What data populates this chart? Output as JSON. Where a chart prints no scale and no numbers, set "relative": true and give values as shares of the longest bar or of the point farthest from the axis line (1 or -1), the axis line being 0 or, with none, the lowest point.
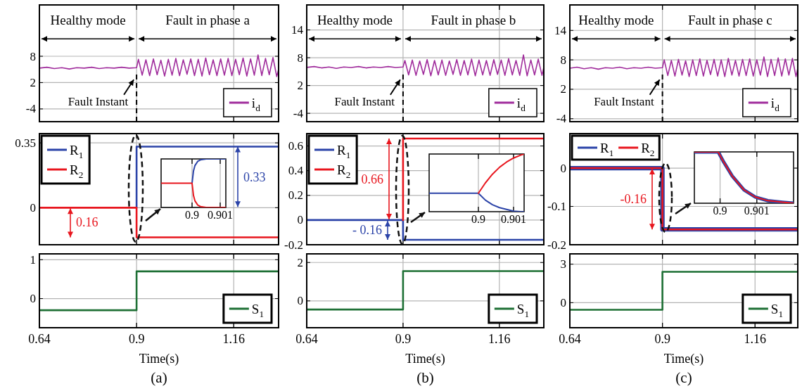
{
  "chart_data": [
    {
      "type": "line",
      "xlim": [
        0.64,
        1.28
      ],
      "xticks": [
        0.64,
        0.9,
        1.16
      ],
      "ylim": [
        -6.9,
        19.7
      ],
      "yticks": [
        -4,
        2,
        8
      ],
      "tick_labels": "y",
      "grid": true,
      "legend": "bottom right",
      "series": [
        {
          "name": "i$_{d}$",
          "color": "#a02c9c",
          "x": [
            0.64,
            0.66,
            0.68,
            0.7,
            0.72,
            0.74,
            0.76,
            0.78,
            0.8,
            0.82,
            0.84,
            0.86,
            0.88,
            0.9,
            0.905,
            0.915,
            0.925,
            0.935,
            0.945,
            0.955,
            0.965,
            0.975,
            0.985,
            0.995,
            1.005,
            1.015,
            1.025,
            1.035,
            1.045,
            1.055,
            1.065,
            1.075,
            1.085,
            1.095,
            1.105,
            1.115,
            1.125,
            1.135,
            1.145,
            1.155,
            1.165,
            1.175,
            1.185,
            1.195,
            1.205,
            1.215,
            1.225,
            1.235,
            1.245,
            1.255,
            1.265,
            1.275,
            1.28
          ],
          "values": [
            5.3,
            5.5,
            5.2,
            5.4,
            5.1,
            5.4,
            5.3,
            5.5,
            5.2,
            5.4,
            5.3,
            5.5,
            5.3,
            5.4,
            7.3,
            3.7,
            7.2,
            3.6,
            7.4,
            3.8,
            7.1,
            3.5,
            7.3,
            3.7,
            7.5,
            3.6,
            7.2,
            3.9,
            7.4,
            3.6,
            7.3,
            3.5,
            7.6,
            3.8,
            7.2,
            3.6,
            7.4,
            3.7,
            7.5,
            3.6,
            7.3,
            3.8,
            7.6,
            3.5,
            7.4,
            3.7,
            8.3,
            3.6,
            7.5,
            3.8,
            7.7,
            3.4,
            5.0
          ]
        }
      ],
      "annotations": [
        "Healthy mode",
        "Fault in phase a"
      ],
      "ref_lines": [
        {
          "axis": "x",
          "value": 0.9,
          "label": "Fault Instant",
          "line_style": "dashed"
        }
      ]
    },
    {
      "type": "line",
      "xlim": [
        0.64,
        1.28
      ],
      "xticks": [
        0.64,
        0.9,
        1.16
      ],
      "ylim": [
        -0.2,
        0.4
      ],
      "yticks": [
        0,
        0.35
      ],
      "tick_labels": "y",
      "grid": true,
      "legend": "top left",
      "series": [
        {
          "name": "R$_{1}$",
          "color": "#2b43a8",
          "x": [
            0.9,
            0.9,
            1.28
          ],
          "values": [
            0,
            0.33,
            0.33
          ]
        },
        {
          "name": "R$_{2}$",
          "color": "#e8161e",
          "x": [
            0.64,
            0.9,
            0.9,
            1.28
          ],
          "values": [
            0,
            0,
            -0.16,
            -0.16
          ]
        }
      ],
      "annotations": [
        "0.16",
        "0.33"
      ]
    },
    {
      "type": "line",
      "relative": true,
      "xlim": [
        0.8989,
        0.9012
      ],
      "xticks": [
        0.9,
        0.901
      ],
      "tick_labels": "x",
      "grid": "x",
      "series": [
        {
          "color": "#2b43a8",
          "x": [
            0.9,
            0.90005,
            0.9001,
            0.9002,
            0.9003,
            0.9005,
            0.9012
          ],
          "values": [
            0.5,
            0.75,
            0.86,
            0.95,
            0.98,
            1,
            1
          ]
        },
        {
          "color": "#e8161e",
          "x": [
            0.8989,
            0.9,
            0.90005,
            0.9001,
            0.9002,
            0.9003,
            0.9005,
            0.9012
          ],
          "values": [
            0.5,
            0.5,
            0.25,
            0.14,
            0.05,
            0.02,
            0,
            0
          ]
        }
      ]
    },
    {
      "type": "step",
      "xlim": [
        0.64,
        1.28
      ],
      "xticks": [
        0.64,
        0.9,
        1.16
      ],
      "ylim": [
        -0.75,
        1.15
      ],
      "yticks": [
        0,
        1
      ],
      "grid": true,
      "legend": "bottom right",
      "xlabel": "Time(s)",
      "series": [
        {
          "name": "S$_{1}$",
          "color": "#1e7035",
          "x": [
            0.64,
            0.9,
            1.28
          ],
          "values": [
            -0.3,
            0.7,
            0.7
          ]
        }
      ],
      "annotations": [
        "(a)"
      ]
    },
    {
      "type": "line",
      "xlim": [
        0.64,
        1.28
      ],
      "xticks": [
        0.64,
        0.9,
        1.16
      ],
      "ylim": [
        -5.8,
        19.4
      ],
      "yticks": [
        -4,
        2,
        8,
        14
      ],
      "tick_labels": "y",
      "grid": true,
      "legend": "bottom right",
      "series": [
        {
          "name": "i$_{d}$",
          "color": "#a02c9c",
          "x": [
            0.64,
            0.66,
            0.68,
            0.7,
            0.72,
            0.74,
            0.76,
            0.78,
            0.8,
            0.82,
            0.84,
            0.86,
            0.88,
            0.9,
            0.905,
            0.915,
            0.925,
            0.935,
            0.945,
            0.955,
            0.965,
            0.975,
            0.985,
            0.995,
            1.005,
            1.015,
            1.025,
            1.035,
            1.045,
            1.055,
            1.065,
            1.075,
            1.085,
            1.095,
            1.105,
            1.115,
            1.125,
            1.135,
            1.145,
            1.155,
            1.165,
            1.175,
            1.185,
            1.195,
            1.205,
            1.215,
            1.225,
            1.235,
            1.245,
            1.255,
            1.265,
            1.275,
            1.28
          ],
          "values": [
            5.9,
            6.1,
            5.8,
            6.0,
            5.7,
            6.0,
            5.9,
            6.1,
            5.8,
            6.0,
            5.9,
            6.1,
            5.9,
            6.0,
            7.4,
            4.3,
            7.5,
            4.2,
            7.3,
            4.4,
            7.6,
            4.1,
            7.4,
            4.3,
            7.5,
            4.2,
            7.3,
            4.4,
            7.6,
            4.2,
            7.4,
            4.3,
            7.7,
            4.1,
            7.5,
            4.3,
            7.4,
            4.2,
            7.6,
            4.4,
            7.5,
            4.2,
            7.8,
            4.3,
            7.4,
            4.2,
            8.6,
            4.1,
            7.5,
            4.3,
            7.7,
            4.2,
            5.9
          ]
        }
      ],
      "annotations": [
        "Healthy mode",
        "Fault in phase b"
      ],
      "ref_lines": [
        {
          "axis": "x",
          "value": 0.9,
          "label": "Fault Instant",
          "line_style": "dashed"
        }
      ]
    },
    {
      "type": "line",
      "xlim": [
        0.64,
        1.28
      ],
      "xticks": [
        0.64,
        0.9,
        1.16
      ],
      "ylim": [
        -0.2,
        0.7
      ],
      "yticks": [
        -0.2,
        0,
        0.2,
        0.4,
        0.6
      ],
      "tick_labels": "y",
      "grid": true,
      "legend": "top left",
      "series": [
        {
          "name": "R$_{1}$",
          "color": "#2b43a8",
          "x": [
            0.64,
            0.9,
            0.9,
            1.28
          ],
          "values": [
            0,
            0,
            -0.16,
            -0.16
          ]
        },
        {
          "name": "R$_{2}$",
          "color": "#e8161e",
          "x": [
            0.9,
            0.9,
            1.28
          ],
          "values": [
            0,
            0.66,
            0.66
          ]
        }
      ],
      "annotations": [
        "0.66",
        "- 0.16"
      ]
    },
    {
      "type": "line",
      "relative": true,
      "xlim": [
        0.8986,
        0.9013
      ],
      "xticks": [
        0.9,
        0.901
      ],
      "tick_labels": "x",
      "grid": "x",
      "series": [
        {
          "color": "#2b43a8",
          "x": [
            0.8986,
            0.9,
            0.9002,
            0.9004,
            0.9006,
            0.9008,
            0.901,
            0.9012,
            0.9013
          ],
          "values": [
            0.32,
            0.32,
            0.2,
            0.12,
            0.07,
            0.04,
            0.01,
            0,
            0
          ]
        },
        {
          "color": "#e8161e",
          "x": [
            0.9,
            0.9002,
            0.9004,
            0.9006,
            0.9008,
            0.901,
            0.9012,
            0.9013
          ],
          "values": [
            0.32,
            0.5,
            0.65,
            0.77,
            0.86,
            0.93,
            0.98,
            1
          ]
        }
      ]
    },
    {
      "type": "step",
      "xlim": [
        0.64,
        1.28
      ],
      "xticks": [
        0.64,
        0.9,
        1.16
      ],
      "ylim": [
        -1.4,
        2.45
      ],
      "yticks": [
        0,
        2
      ],
      "grid": true,
      "legend": "bottom right",
      "xlabel": "Time(s)",
      "series": [
        {
          "name": "S$_{1}$",
          "color": "#1e7035",
          "x": [
            0.64,
            0.9,
            1.28
          ],
          "values": [
            -0.45,
            1.55,
            1.55
          ]
        }
      ],
      "annotations": [
        "(b)"
      ]
    },
    {
      "type": "line",
      "xlim": [
        0.64,
        1.28
      ],
      "xticks": [
        0.64,
        0.9,
        1.16
      ],
      "ylim": [
        -4.6,
        19.2
      ],
      "yticks": [
        -4,
        2,
        8,
        14
      ],
      "tick_labels": "y",
      "grid": true,
      "legend": "bottom right",
      "series": [
        {
          "name": "i$_{d}$",
          "color": "#a02c9c",
          "x": [
            0.64,
            0.66,
            0.68,
            0.7,
            0.72,
            0.74,
            0.76,
            0.78,
            0.8,
            0.82,
            0.84,
            0.86,
            0.88,
            0.9,
            0.905,
            0.915,
            0.925,
            0.935,
            0.945,
            0.955,
            0.965,
            0.975,
            0.985,
            0.995,
            1.005,
            1.015,
            1.025,
            1.035,
            1.045,
            1.055,
            1.065,
            1.075,
            1.085,
            1.095,
            1.105,
            1.115,
            1.125,
            1.135,
            1.145,
            1.155,
            1.165,
            1.175,
            1.185,
            1.195,
            1.205,
            1.215,
            1.225,
            1.235,
            1.245,
            1.255,
            1.265,
            1.275,
            1.28
          ],
          "values": [
            6.3,
            6.5,
            6.2,
            6.4,
            6.1,
            6.4,
            6.3,
            6.5,
            6.2,
            6.4,
            6.3,
            6.5,
            6.3,
            6.4,
            8.0,
            4.8,
            7.9,
            4.7,
            8.1,
            4.9,
            7.8,
            4.6,
            8.0,
            4.8,
            8.2,
            4.7,
            7.9,
            5.0,
            8.1,
            4.7,
            8.0,
            4.6,
            8.3,
            4.9,
            7.9,
            4.7,
            8.1,
            4.8,
            8.2,
            4.7,
            8.0,
            4.9,
            8.6,
            4.6,
            8.1,
            4.8,
            8.4,
            4.7,
            8.2,
            4.9,
            8.3,
            4.6,
            6.3
          ]
        }
      ],
      "annotations": [
        "Healthy mode",
        "Fault in phase c"
      ],
      "ref_lines": [
        {
          "axis": "x",
          "value": 0.9,
          "label": "Fault Instant",
          "line_style": "dashed"
        }
      ]
    },
    {
      "type": "line",
      "xlim": [
        0.64,
        1.28
      ],
      "xticks": [
        0.64,
        0.9,
        1.16
      ],
      "ylim": [
        -0.2,
        0.09
      ],
      "yticks": [
        -0.2,
        -0.1,
        0
      ],
      "tick_labels": "y",
      "grid": true,
      "legend": "top left",
      "series": [
        {
          "name": "R$_{1}$",
          "color": "#2b43a8",
          "x": [
            0.64,
            0.9,
            0.9,
            1.28
          ],
          "values": [
            0,
            0,
            -0.16,
            -0.16
          ]
        },
        {
          "name": "R$_{2}$",
          "color": "#e8161e",
          "x": [
            0.64,
            0.9,
            0.9,
            1.28
          ],
          "values": [
            0,
            0,
            -0.16,
            -0.16
          ]
        }
      ],
      "annotations": [
        "-0.16"
      ]
    },
    {
      "type": "line",
      "relative": true,
      "xlim": [
        0.8993,
        0.902
      ],
      "xticks": [
        0.9,
        0.901
      ],
      "tick_labels": "x",
      "grid": "x",
      "series": [
        {
          "color": "#2b43a8",
          "x": [
            0.8993,
            0.89995,
            0.9001,
            0.90033,
            0.90065,
            0.90096,
            0.9013,
            0.9017,
            0.902
          ],
          "values": [
            1,
            1,
            0.8,
            0.53,
            0.26,
            0.12,
            0.05,
            0.02,
            0
          ]
        },
        {
          "color": "#e8161e",
          "x": [
            0.8993,
            0.89995,
            0.9001,
            0.90033,
            0.90065,
            0.90096,
            0.9013,
            0.9017,
            0.902
          ],
          "values": [
            1,
            1,
            0.8,
            0.53,
            0.26,
            0.12,
            0.05,
            0.02,
            0
          ]
        }
      ]
    },
    {
      "type": "step",
      "xlim": [
        0.64,
        1.28
      ],
      "xticks": [
        0.64,
        0.9,
        1.16
      ],
      "ylim": [
        -1.95,
        3.8
      ],
      "yticks": [
        0,
        3
      ],
      "grid": true,
      "legend": "bottom right",
      "xlabel": "Time(s)",
      "series": [
        {
          "name": "S$_{1}$",
          "color": "#1e7035",
          "x": [
            0.64,
            0.9,
            1.28
          ],
          "values": [
            -0.55,
            2.4,
            2.4
          ]
        }
      ],
      "annotations": [
        "(c)"
      ]
    }
  ]
}
